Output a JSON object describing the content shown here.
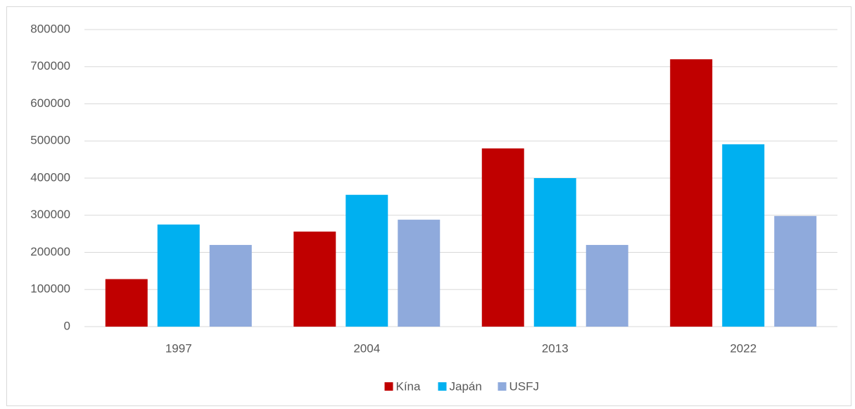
{
  "chart_data": {
    "type": "bar",
    "categories": [
      "1997",
      "2004",
      "2013",
      "2022"
    ],
    "series": [
      {
        "name": "Kína",
        "color": "#c00000",
        "values": [
          128000,
          256000,
          480000,
          720000
        ]
      },
      {
        "name": "Japán",
        "color": "#00b0f0",
        "values": [
          275000,
          355000,
          400000,
          491000
        ]
      },
      {
        "name": "USFJ",
        "color": "#8faadc",
        "values": [
          220000,
          288000,
          220000,
          298000
        ]
      }
    ],
    "ylim": [
      0,
      800000
    ],
    "yticks": [
      0,
      100000,
      200000,
      300000,
      400000,
      500000,
      600000,
      700000,
      800000
    ],
    "grid": true,
    "legend": "bottom"
  }
}
